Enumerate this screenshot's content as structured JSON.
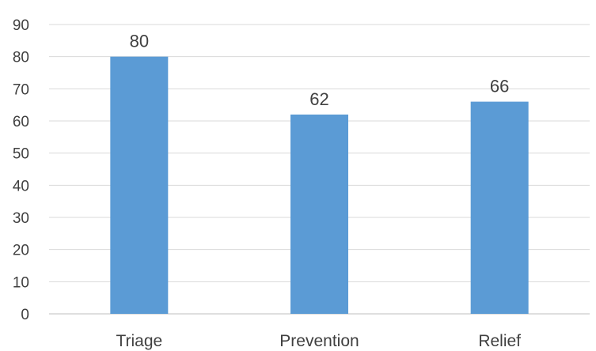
{
  "chart_data": {
    "type": "bar",
    "categories": [
      "Triage",
      "Prevention",
      "Relief"
    ],
    "values": [
      80,
      62,
      66
    ],
    "title": "",
    "xlabel": "",
    "ylabel": "",
    "ylim": [
      0,
      90
    ],
    "yticks": [
      0,
      10,
      20,
      30,
      40,
      50,
      60,
      70,
      80,
      90
    ],
    "grid": true,
    "legend": "none",
    "data_labels": true,
    "bar_color": "#5b9bd5"
  }
}
